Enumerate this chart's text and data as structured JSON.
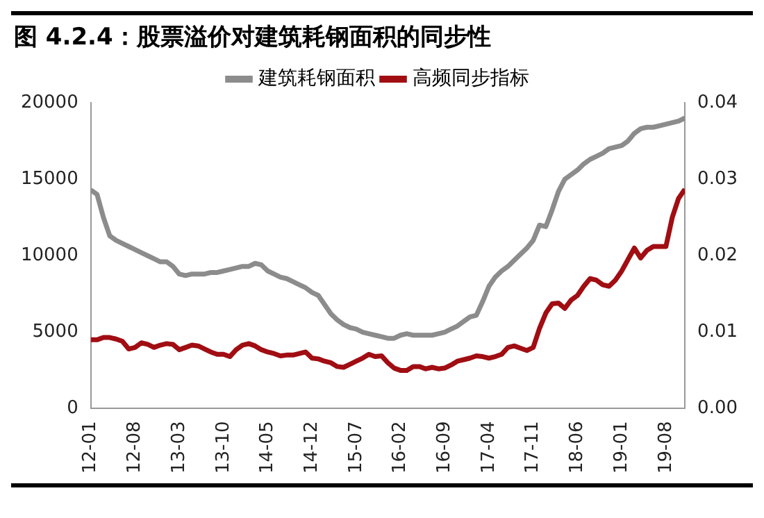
{
  "chart_data": {
    "type": "line",
    "title": "图 4.2.4：股票溢价对建筑耗钢面积的同步性",
    "categories": [
      "12-01",
      null,
      null,
      null,
      null,
      null,
      null,
      "12-08",
      null,
      null,
      null,
      null,
      null,
      null,
      "13-03",
      null,
      null,
      null,
      null,
      null,
      null,
      "13-10",
      null,
      null,
      null,
      null,
      null,
      null,
      "14-05",
      null,
      null,
      null,
      null,
      null,
      null,
      "14-12",
      null,
      null,
      null,
      null,
      null,
      null,
      "15-07",
      null,
      null,
      null,
      null,
      null,
      null,
      "16-02",
      null,
      null,
      null,
      null,
      null,
      null,
      "16-09",
      null,
      null,
      null,
      null,
      null,
      null,
      "17-04",
      null,
      null,
      null,
      null,
      null,
      null,
      "17-11",
      null,
      null,
      null,
      null,
      null,
      null,
      "18-06",
      null,
      null,
      null,
      null,
      null,
      null,
      "19-01",
      null,
      null,
      null,
      null,
      null,
      null,
      "19-08",
      null,
      null,
      null
    ],
    "series": [
      {
        "name": "建筑耗钢面积",
        "color": "#8c8c8c",
        "values": [
          14300,
          14000,
          12500,
          11300,
          11000,
          10800,
          10600,
          10400,
          10200,
          10000,
          9800,
          9600,
          9600,
          9300,
          8800,
          8700,
          8800,
          8800,
          8800,
          8900,
          8900,
          9000,
          9100,
          9200,
          9300,
          9300,
          9500,
          9400,
          9000,
          8800,
          8600,
          8500,
          8300,
          8100,
          7900,
          7600,
          7400,
          6800,
          6200,
          5800,
          5500,
          5300,
          5200,
          5000,
          4900,
          4800,
          4700,
          4600,
          4600,
          4800,
          4900,
          4800,
          4800,
          4800,
          4800,
          4900,
          5000,
          5200,
          5400,
          5700,
          6000,
          6100,
          7000,
          8000,
          8600,
          9000,
          9300,
          9700,
          10100,
          10500,
          11000,
          12000,
          11900,
          13000,
          14200,
          15000,
          15300,
          15600,
          16000,
          16300,
          16500,
          16700,
          17000,
          17100,
          17200,
          17500,
          18000,
          18300,
          18400,
          18400,
          18500,
          18600,
          18700,
          18800,
          19000
        ]
      },
      {
        "name": "高频同步指标",
        "color": "#a00d12",
        "axis": "y2",
        "values": [
          0.009,
          0.009,
          0.0093,
          0.0093,
          0.0091,
          0.0088,
          0.0078,
          0.008,
          0.0086,
          0.0084,
          0.008,
          0.0083,
          0.0085,
          0.0084,
          0.0077,
          0.008,
          0.0083,
          0.0082,
          0.0078,
          0.0074,
          0.0071,
          0.0071,
          0.0068,
          0.0077,
          0.0083,
          0.0085,
          0.0082,
          0.0077,
          0.0074,
          0.0072,
          0.0069,
          0.007,
          0.007,
          0.0072,
          0.0074,
          0.0066,
          0.0065,
          0.0062,
          0.006,
          0.0055,
          0.0054,
          0.0058,
          0.0062,
          0.0066,
          0.0071,
          0.0068,
          0.0069,
          0.006,
          0.0053,
          0.005,
          0.005,
          0.0055,
          0.0055,
          0.0052,
          0.0054,
          0.0052,
          0.0053,
          0.0057,
          0.0062,
          0.0064,
          0.0066,
          0.0069,
          0.0068,
          0.0066,
          0.0068,
          0.0071,
          0.008,
          0.0082,
          0.0079,
          0.0076,
          0.008,
          0.0105,
          0.0125,
          0.0137,
          0.0138,
          0.0131,
          0.0142,
          0.0148,
          0.016,
          0.017,
          0.0168,
          0.0162,
          0.016,
          0.0168,
          0.018,
          0.0195,
          0.021,
          0.0197,
          0.0207,
          0.0212,
          0.0212,
          0.0212,
          0.025,
          0.0275,
          0.0287
        ]
      }
    ],
    "ylim": [
      0,
      20000
    ],
    "yticks": [
      0,
      5000,
      10000,
      15000,
      20000
    ],
    "y2lim": [
      0,
      0.04
    ],
    "y2ticks": [
      {
        "value": 0,
        "label": "0.00"
      },
      {
        "value": 0.01,
        "label": "0.01"
      },
      {
        "value": 0.02,
        "label": "0.02"
      },
      {
        "value": 0.03,
        "label": "0.03"
      },
      {
        "value": 0.04,
        "label": "0.04"
      }
    ],
    "grid": false,
    "legend": "top",
    "marker": "none",
    "line_style": "solid"
  }
}
